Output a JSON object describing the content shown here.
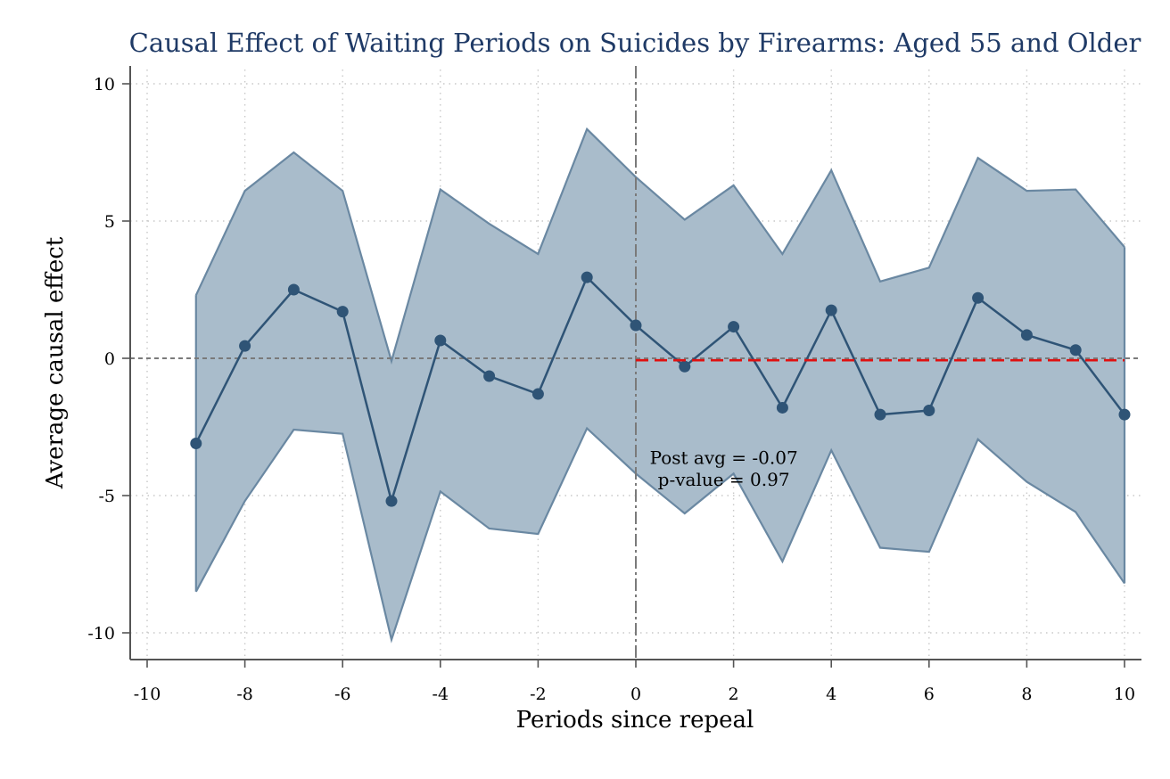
{
  "chart_data": {
    "type": "line",
    "title": "Causal Effect of Waiting Periods on Suicides by Firearms: Aged 55 and Older",
    "xlabel": "Periods since repeal",
    "ylabel": "Average causal effect",
    "xlim": [
      -10,
      10
    ],
    "ylim": [
      -10,
      10
    ],
    "xticks": [
      -10,
      -8,
      -6,
      -4,
      -2,
      0,
      2,
      4,
      6,
      8,
      10
    ],
    "yticks": [
      10,
      5,
      0,
      -5,
      -10
    ],
    "x": [
      -9,
      -8,
      -7,
      -6,
      -5,
      -4,
      -3,
      -2,
      -1,
      0,
      1,
      2,
      3,
      4,
      5,
      6,
      7,
      8,
      9,
      10
    ],
    "series": [
      {
        "values": [
          -3.1,
          0.45,
          2.5,
          1.7,
          -5.2,
          0.65,
          -0.65,
          -1.3,
          2.95,
          1.2,
          -0.3,
          1.15,
          -1.8,
          1.75,
          -2.05,
          -1.9,
          2.2,
          0.85,
          0.3,
          -2.05
        ],
        "ci_lower": [
          -8.5,
          -5.2,
          -2.6,
          -2.75,
          -10.25,
          -4.85,
          -6.2,
          -6.4,
          -2.55,
          -4.2,
          -5.65,
          -4.2,
          -7.4,
          -3.35,
          -6.9,
          -7.05,
          -2.95,
          -4.5,
          -5.6,
          -8.2
        ],
        "ci_upper": [
          2.3,
          6.1,
          7.5,
          6.1,
          -0.1,
          6.15,
          4.9,
          3.8,
          8.35,
          6.6,
          5.05,
          6.3,
          3.8,
          6.85,
          2.8,
          3.3,
          7.3,
          6.1,
          6.15,
          4.05
        ]
      }
    ],
    "post_average": {
      "value": -0.07,
      "x_start": 0,
      "x_end": 10
    },
    "annotation": {
      "line1": "Post avg = -0.07",
      "line2": "p-value = 0.97",
      "x": 1.8,
      "y1": -3.85,
      "y2": -4.65
    },
    "reference_lines": {
      "y": 0,
      "x": 0
    },
    "grid": true,
    "colors": {
      "title": "#1f3a66",
      "series": "#2f5476",
      "band_fill": "#a9bccb",
      "band_edge": "#6a88a2",
      "post_avg": "#e01010",
      "reference": "#7a7a7a",
      "grid": "#c8c8c8",
      "axis": "#555555"
    }
  }
}
